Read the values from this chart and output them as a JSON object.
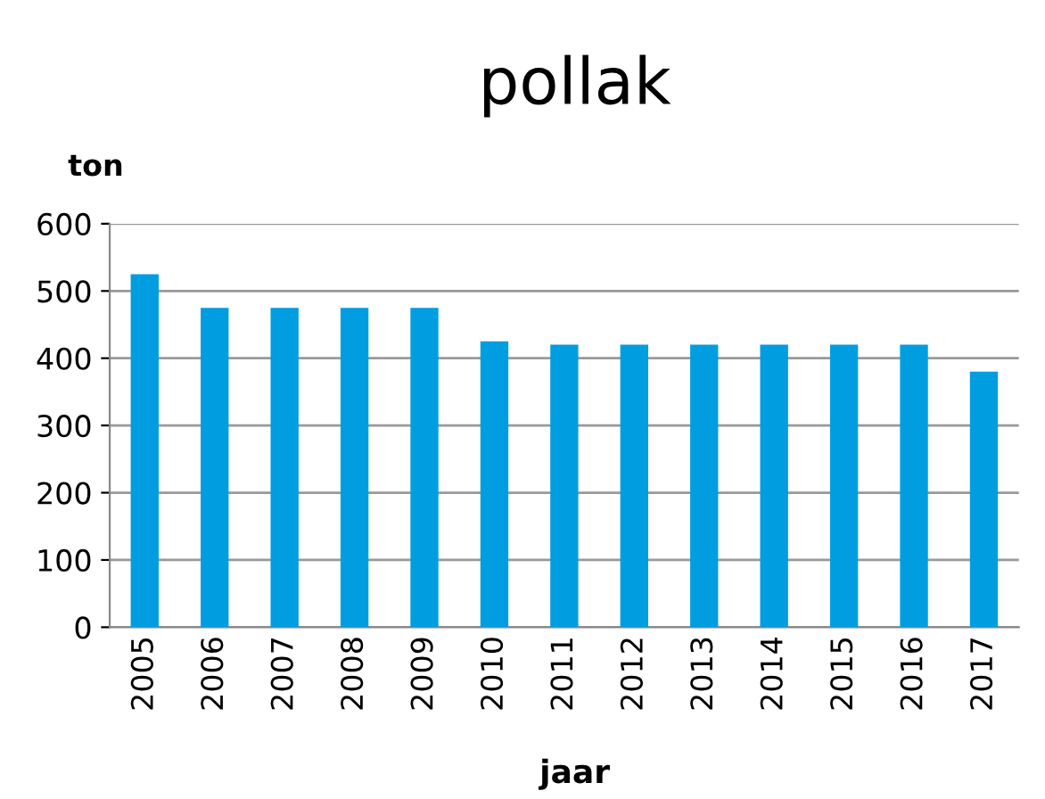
{
  "chart_data": {
    "type": "bar",
    "title": "pollak",
    "ylabel": "ton",
    "xlabel": "jaar",
    "categories": [
      "2005",
      "2006",
      "2007",
      "2008",
      "2009",
      "2010",
      "2011",
      "2012",
      "2013",
      "2014",
      "2015",
      "2016",
      "2017"
    ],
    "values": [
      525,
      475,
      475,
      475,
      475,
      425,
      420,
      420,
      420,
      420,
      420,
      420,
      380
    ],
    "color": "#009ee0",
    "ylim": [
      0,
      600
    ],
    "yticks": [
      0,
      100,
      200,
      300,
      400,
      500,
      600
    ],
    "grid": "y",
    "legend": false
  }
}
